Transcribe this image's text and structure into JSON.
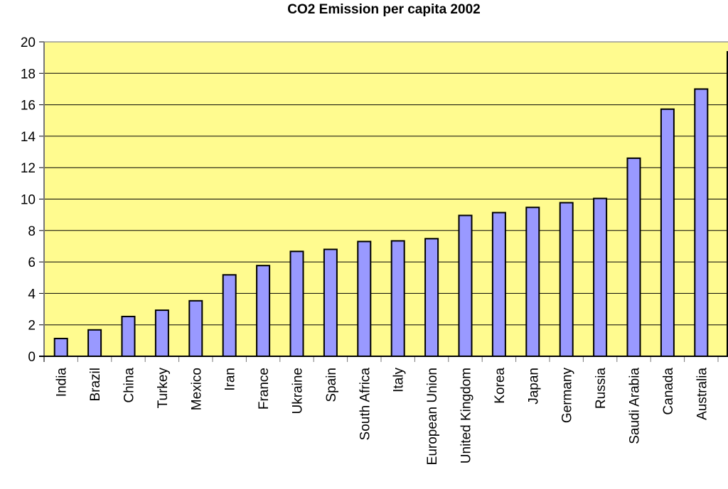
{
  "chart_data": {
    "type": "bar",
    "title": "CO2 Emission per capita 2002",
    "xlabel": "",
    "ylabel": "",
    "ylim": [
      0,
      20
    ],
    "yticks": [
      "0",
      "2",
      "4",
      "6",
      "8",
      "10",
      "12",
      "14",
      "16",
      "18",
      "20"
    ],
    "grid": true,
    "categories": [
      "India",
      "Brazil",
      "China",
      "Turkey",
      "Mexico",
      "Iran",
      "France",
      "Ukraine",
      "Spain",
      "South Africa",
      "Italy",
      "European Union",
      "United Kingdom",
      "Korea",
      "Japan",
      "Germany",
      "Russia",
      "Saudi Arabia",
      "Canada",
      "Australia"
    ],
    "values": [
      1.13,
      1.68,
      2.53,
      2.93,
      3.53,
      5.18,
      5.77,
      6.67,
      6.8,
      7.3,
      7.34,
      7.48,
      8.96,
      9.14,
      9.47,
      9.77,
      10.04,
      12.6,
      15.72,
      17.0
    ],
    "colors": {
      "plot_background": "#FFFB8F",
      "bar_fill": "#9999FF",
      "bar_stroke": "#000000",
      "gridline": "#000000"
    }
  }
}
